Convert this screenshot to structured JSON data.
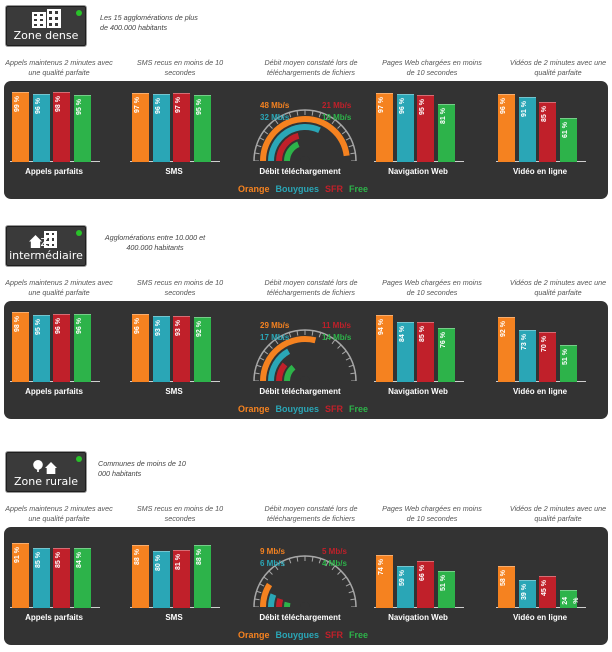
{
  "colors": {
    "orange": "#f58220",
    "bouygues": "#2aa6b6",
    "sfr": "#c0202a",
    "free": "#2db34a"
  },
  "captions": {
    "calls": "Appels maintenus 2 minutes avec une qualité parfaite",
    "sms": "SMS recus en moins de 10 secondes",
    "debit": "Débit moyen constaté lors de téléchargements de fichiers",
    "web": "Pages Web chargées en moins de 10 secondes",
    "video": "Vidéos de 2 minutes avec une qualité parfaite"
  },
  "chart_data": [
    {
      "type": "bar",
      "zone_label": "Zone dense",
      "zone_desc": "Les 15 agglomérations de plus de 400.000 habitants",
      "series": [
        {
          "name": "Orange"
        },
        {
          "name": "Bouygues"
        },
        {
          "name": "SFR"
        },
        {
          "name": "Free"
        }
      ],
      "groups": [
        {
          "label": "Appels parfaits",
          "values": [
            99,
            96,
            98,
            95
          ]
        },
        {
          "label": "SMS",
          "values": [
            97,
            96,
            97,
            95
          ]
        },
        {
          "label": "Navigation Web",
          "values": [
            97,
            96,
            95,
            81
          ]
        },
        {
          "label": "Vidéo en ligne",
          "values": [
            96,
            91,
            85,
            61
          ]
        }
      ],
      "gauge": {
        "label": "Débit téléchargement",
        "max_mbps": 50,
        "values": [
          48,
          32,
          21,
          19
        ],
        "texts": [
          "48 Mb/s",
          "32 Mb/s",
          "21 Mb/s",
          "19 Mb/s"
        ]
      },
      "legend": [
        "Orange",
        "Bouygues",
        "SFR",
        "Free"
      ]
    },
    {
      "type": "bar",
      "zone_label": "Z. intermédiaire",
      "zone_desc": "Agglomérations entre 10.000 et 400.000 habitants",
      "series": [
        {
          "name": "Orange"
        },
        {
          "name": "Bouygues"
        },
        {
          "name": "SFR"
        },
        {
          "name": "Free"
        }
      ],
      "groups": [
        {
          "label": "Appels parfaits",
          "values": [
            98,
            95,
            96,
            96
          ]
        },
        {
          "label": "SMS",
          "values": [
            96,
            93,
            93,
            92
          ]
        },
        {
          "label": "Navigation Web",
          "values": [
            94,
            84,
            85,
            76
          ]
        },
        {
          "label": "Vidéo en ligne",
          "values": [
            92,
            73,
            70,
            51
          ]
        }
      ],
      "gauge": {
        "label": "Débit téléchargement",
        "max_mbps": 50,
        "values": [
          29,
          17,
          11,
          14
        ],
        "texts": [
          "29 Mb/s",
          "17 Mb/s",
          "11 Mb/s",
          "14 Mb/s"
        ]
      },
      "legend": [
        "Orange",
        "Bouygues",
        "SFR",
        "Free"
      ]
    },
    {
      "type": "bar",
      "zone_label": "Zone rurale",
      "zone_desc": "Communes de moins de 10 000 habitants",
      "series": [
        {
          "name": "Orange"
        },
        {
          "name": "Bouygues"
        },
        {
          "name": "SFR"
        },
        {
          "name": "Free"
        }
      ],
      "groups": [
        {
          "label": "Appels parfaits",
          "values": [
            91,
            85,
            85,
            84
          ]
        },
        {
          "label": "SMS",
          "values": [
            88,
            80,
            81,
            88
          ]
        },
        {
          "label": "Navigation Web",
          "values": [
            74,
            59,
            66,
            51
          ]
        },
        {
          "label": "Vidéo en ligne",
          "values": [
            58,
            39,
            45,
            24
          ]
        }
      ],
      "gauge": {
        "label": "Débit téléchargement",
        "max_mbps": 50,
        "values": [
          9,
          6,
          5,
          4
        ],
        "texts": [
          "9 Mb/s",
          "6 Mb/s",
          "5 Mb/s",
          "4 Mb/s"
        ]
      },
      "legend": [
        "Orange",
        "Bouygues",
        "SFR",
        "Free"
      ]
    }
  ]
}
